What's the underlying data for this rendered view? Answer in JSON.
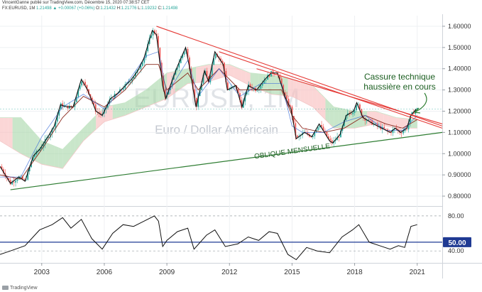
{
  "header": {
    "line1": "VincentGanne publié sur TradingView.com, Décembre 15, 2020 07:38:57 CET",
    "symbol": "FX:EURUSD, 1M",
    "last": "1.21498",
    "change": "▲ +0.00067 (+0.06%)",
    "o_label": "O:",
    "o": "1.21432",
    "h_label": "H:",
    "h": "1.21776",
    "l_label": "L:",
    "l": "1.19232",
    "c_label": "C:",
    "c": "1.21498"
  },
  "watermark": {
    "symbol": "EURUSD, 1M",
    "description": "Euro / Dollar Américain"
  },
  "annotations": {
    "breakout_line1": "Cassure technique",
    "breakout_line2": "haussière en cours",
    "oblique": "OBLIQUE MENSUELLE"
  },
  "logo": "TradingView",
  "colors": {
    "candle_up": "#26a69a",
    "candle_down": "#ef5350",
    "close_line": "#111111",
    "cloud_bull": "#a5d6a7",
    "cloud_bear": "#f8bbbb",
    "kijun": "#8b2a1f",
    "tenkan": "#3f6fd8",
    "red_trendline": "#e53935",
    "green_trendline": "#2e7d32",
    "annotation_text": "#1b5e20",
    "rsi_line": "#111111",
    "rsi_level": "#1f3a93",
    "last_price_badge": "#1f3a93"
  },
  "chart_data": [
    {
      "type": "line",
      "title": "EURUSD, 1M",
      "subtitle": "Euro / Dollar Américain",
      "xlabel": "",
      "ylabel": "",
      "x_ticks": [
        "2003",
        "2006",
        "2009",
        "2012",
        "2015",
        "2018",
        "2021"
      ],
      "x_range": [
        2001.0,
        2022.2
      ],
      "y_ticks": [
        "1.60000",
        "1.50000",
        "1.40000",
        "1.30000",
        "1.20000",
        "1.10000",
        "1.00000",
        "0.90000",
        "0.80000"
      ],
      "y_range": [
        0.76,
        1.65
      ],
      "grid": true,
      "series": [
        {
          "name": "EURUSD monthly close",
          "points": [
            [
              2001.0,
              0.94
            ],
            [
              2001.5,
              0.86
            ],
            [
              2001.9,
              0.89
            ],
            [
              2002.2,
              0.87
            ],
            [
              2002.6,
              0.99
            ],
            [
              2002.9,
              1.02
            ],
            [
              2003.3,
              1.08
            ],
            [
              2003.6,
              1.13
            ],
            [
              2003.9,
              1.23
            ],
            [
              2004.2,
              1.22
            ],
            [
              2004.5,
              1.22
            ],
            [
              2004.9,
              1.35
            ],
            [
              2005.2,
              1.3
            ],
            [
              2005.6,
              1.2
            ],
            [
              2005.9,
              1.18
            ],
            [
              2006.3,
              1.26
            ],
            [
              2006.6,
              1.28
            ],
            [
              2006.9,
              1.31
            ],
            [
              2007.3,
              1.35
            ],
            [
              2007.6,
              1.39
            ],
            [
              2007.9,
              1.45
            ],
            [
              2008.3,
              1.58
            ],
            [
              2008.5,
              1.56
            ],
            [
              2008.8,
              1.32
            ],
            [
              2008.95,
              1.26
            ],
            [
              2009.2,
              1.33
            ],
            [
              2009.5,
              1.41
            ],
            [
              2009.9,
              1.5
            ],
            [
              2010.1,
              1.4
            ],
            [
              2010.4,
              1.22
            ],
            [
              2010.8,
              1.39
            ],
            [
              2011.0,
              1.34
            ],
            [
              2011.3,
              1.48
            ],
            [
              2011.7,
              1.42
            ],
            [
              2011.9,
              1.3
            ],
            [
              2012.3,
              1.32
            ],
            [
              2012.6,
              1.22
            ],
            [
              2012.9,
              1.32
            ],
            [
              2013.3,
              1.3
            ],
            [
              2013.7,
              1.35
            ],
            [
              2014.0,
              1.38
            ],
            [
              2014.3,
              1.38
            ],
            [
              2014.7,
              1.26
            ],
            [
              2014.95,
              1.21
            ],
            [
              2015.2,
              1.07
            ],
            [
              2015.6,
              1.1
            ],
            [
              2015.95,
              1.08
            ],
            [
              2016.3,
              1.14
            ],
            [
              2016.8,
              1.06
            ],
            [
              2016.95,
              1.05
            ],
            [
              2017.3,
              1.09
            ],
            [
              2017.6,
              1.18
            ],
            [
              2017.95,
              1.2
            ],
            [
              2018.1,
              1.24
            ],
            [
              2018.4,
              1.17
            ],
            [
              2018.9,
              1.14
            ],
            [
              2019.3,
              1.12
            ],
            [
              2019.7,
              1.1
            ],
            [
              2019.95,
              1.12
            ],
            [
              2020.2,
              1.1
            ],
            [
              2020.5,
              1.12
            ],
            [
              2020.7,
              1.18
            ],
            [
              2020.95,
              1.21
            ]
          ]
        },
        {
          "name": "Kijun-sen",
          "points": [
            [
              2001.0,
              0.9
            ],
            [
              2002.0,
              0.88
            ],
            [
              2003.0,
              1.02
            ],
            [
              2004.0,
              1.17
            ],
            [
              2005.0,
              1.27
            ],
            [
              2006.0,
              1.22
            ],
            [
              2007.0,
              1.3
            ],
            [
              2008.0,
              1.42
            ],
            [
              2008.6,
              1.42
            ],
            [
              2009.0,
              1.3
            ],
            [
              2010.0,
              1.38
            ],
            [
              2010.5,
              1.3
            ],
            [
              2011.5,
              1.4
            ],
            [
              2012.5,
              1.3
            ],
            [
              2013.5,
              1.3
            ],
            [
              2014.5,
              1.3
            ],
            [
              2015.0,
              1.18
            ],
            [
              2015.5,
              1.12
            ],
            [
              2016.5,
              1.1
            ],
            [
              2017.5,
              1.12
            ],
            [
              2018.5,
              1.18
            ],
            [
              2019.5,
              1.14
            ],
            [
              2020.3,
              1.12
            ],
            [
              2021.0,
              1.16
            ]
          ]
        },
        {
          "name": "Tenkan-sen",
          "points": [
            [
              2001.0,
              0.89
            ],
            [
              2002.0,
              0.89
            ],
            [
              2003.0,
              1.08
            ],
            [
              2004.0,
              1.22
            ],
            [
              2005.0,
              1.28
            ],
            [
              2006.0,
              1.21
            ],
            [
              2007.0,
              1.32
            ],
            [
              2008.0,
              1.46
            ],
            [
              2008.6,
              1.48
            ],
            [
              2009.0,
              1.28
            ],
            [
              2010.0,
              1.44
            ],
            [
              2010.5,
              1.27
            ],
            [
              2011.5,
              1.4
            ],
            [
              2012.5,
              1.27
            ],
            [
              2013.5,
              1.33
            ],
            [
              2014.5,
              1.33
            ],
            [
              2015.0,
              1.13
            ],
            [
              2015.5,
              1.1
            ],
            [
              2016.5,
              1.1
            ],
            [
              2017.5,
              1.15
            ],
            [
              2018.5,
              1.18
            ],
            [
              2019.5,
              1.11
            ],
            [
              2020.3,
              1.11
            ],
            [
              2021.0,
              1.18
            ]
          ]
        },
        {
          "name": "Ichimoku cloud upper",
          "points": [
            [
              2001.0,
              1.17
            ],
            [
              2002.0,
              1.17
            ],
            [
              2003.0,
              1.06
            ],
            [
              2004.0,
              1.02
            ],
            [
              2005.0,
              1.12
            ],
            [
              2006.0,
              1.22
            ],
            [
              2007.0,
              1.24
            ],
            [
              2008.0,
              1.3
            ],
            [
              2009.0,
              1.38
            ],
            [
              2010.0,
              1.4
            ],
            [
              2011.0,
              1.42
            ],
            [
              2012.0,
              1.42
            ],
            [
              2013.0,
              1.38
            ],
            [
              2014.0,
              1.37
            ],
            [
              2015.0,
              1.35
            ],
            [
              2016.0,
              1.32
            ],
            [
              2017.0,
              1.22
            ],
            [
              2018.0,
              1.2
            ],
            [
              2019.0,
              1.2
            ],
            [
              2020.0,
              1.17
            ],
            [
              2021.0,
              1.16
            ]
          ]
        },
        {
          "name": "Ichimoku cloud lower",
          "points": [
            [
              2001.0,
              1.06
            ],
            [
              2002.0,
              1.0
            ],
            [
              2003.0,
              0.95
            ],
            [
              2004.0,
              0.93
            ],
            [
              2005.0,
              1.06
            ],
            [
              2006.0,
              1.15
            ],
            [
              2007.0,
              1.18
            ],
            [
              2008.0,
              1.22
            ],
            [
              2009.0,
              1.26
            ],
            [
              2010.0,
              1.33
            ],
            [
              2011.0,
              1.34
            ],
            [
              2012.0,
              1.37
            ],
            [
              2013.0,
              1.32
            ],
            [
              2014.0,
              1.28
            ],
            [
              2015.0,
              1.27
            ],
            [
              2016.0,
              1.22
            ],
            [
              2017.0,
              1.12
            ],
            [
              2018.0,
              1.12
            ],
            [
              2019.0,
              1.14
            ],
            [
              2020.0,
              1.12
            ],
            [
              2021.0,
              1.12
            ]
          ]
        },
        {
          "name": "Resistance trendline A",
          "points": [
            [
              2008.5,
              1.6
            ],
            [
              2022.2,
              1.13
            ]
          ]
        },
        {
          "name": "Resistance trendline B",
          "points": [
            [
              2011.5,
              1.48
            ],
            [
              2022.2,
              1.12
            ]
          ]
        },
        {
          "name": "Resistance trendline C",
          "points": [
            [
              2013.3,
              1.4
            ],
            [
              2022.2,
              1.14
            ]
          ]
        },
        {
          "name": "Oblique mensuelle (support)",
          "points": [
            [
              2001.5,
              0.83
            ],
            [
              2022.2,
              1.1
            ]
          ]
        }
      ]
    },
    {
      "type": "line",
      "title": "RSI",
      "x_range": [
        2001.0,
        2022.2
      ],
      "y_ticks": [
        "80.00",
        "40.00"
      ],
      "y_range": [
        28,
        88
      ],
      "levels": [
        80,
        40
      ],
      "current_level": "50.00",
      "grid": true,
      "series": [
        {
          "name": "RSI",
          "points": [
            [
              2001.0,
              36
            ],
            [
              2001.5,
              40
            ],
            [
              2002.2,
              46
            ],
            [
              2002.9,
              64
            ],
            [
              2003.5,
              70
            ],
            [
              2004.0,
              78
            ],
            [
              2004.4,
              66
            ],
            [
              2004.9,
              76
            ],
            [
              2005.4,
              54
            ],
            [
              2005.9,
              42
            ],
            [
              2006.4,
              60
            ],
            [
              2006.9,
              70
            ],
            [
              2007.4,
              68
            ],
            [
              2007.9,
              74
            ],
            [
              2008.4,
              80
            ],
            [
              2008.6,
              74
            ],
            [
              2008.8,
              45
            ],
            [
              2009.0,
              52
            ],
            [
              2009.5,
              62
            ],
            [
              2010.0,
              66
            ],
            [
              2010.3,
              42
            ],
            [
              2010.9,
              58
            ],
            [
              2011.3,
              64
            ],
            [
              2011.8,
              45
            ],
            [
              2012.4,
              48
            ],
            [
              2012.9,
              56
            ],
            [
              2013.4,
              52
            ],
            [
              2013.9,
              62
            ],
            [
              2014.3,
              60
            ],
            [
              2014.8,
              36
            ],
            [
              2015.2,
              30
            ],
            [
              2015.7,
              44
            ],
            [
              2016.2,
              40
            ],
            [
              2016.8,
              38
            ],
            [
              2017.4,
              56
            ],
            [
              2017.9,
              64
            ],
            [
              2018.2,
              70
            ],
            [
              2018.7,
              50
            ],
            [
              2019.2,
              46
            ],
            [
              2019.7,
              42
            ],
            [
              2020.1,
              46
            ],
            [
              2020.4,
              44
            ],
            [
              2020.7,
              68
            ],
            [
              2021.0,
              70
            ]
          ]
        }
      ]
    }
  ]
}
